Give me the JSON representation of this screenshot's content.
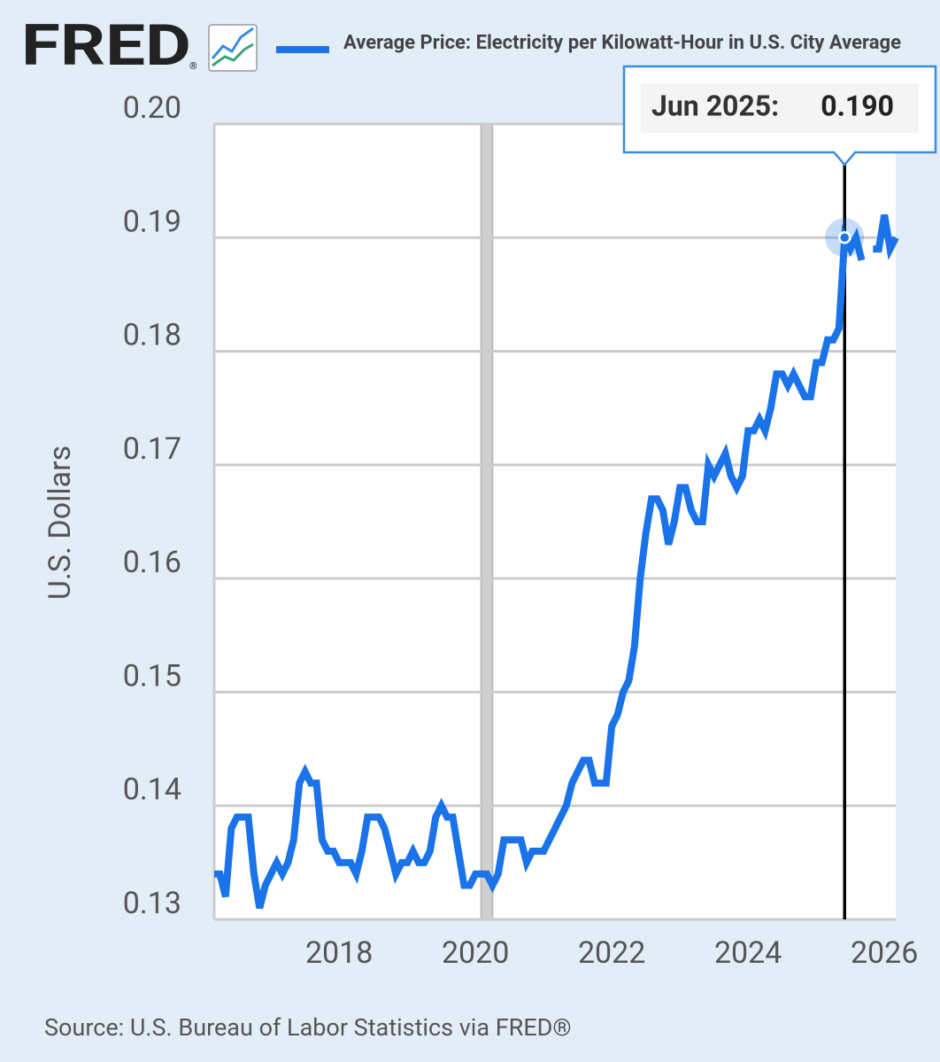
{
  "logo": "FRED",
  "logo_mark": "®",
  "source": "Source: U.S. Bureau of Labor Statistics via FRED®",
  "chart_data": {
    "type": "line",
    "ylabel": "U.S. Dollars",
    "xlim": [
      "2016-03",
      "2026-03"
    ],
    "ylim": [
      0.13,
      0.2
    ],
    "xticks": [
      {
        "value": "2018-01",
        "label": "2018"
      },
      {
        "value": "2020-01",
        "label": "2020"
      },
      {
        "value": "2022-01",
        "label": "2022"
      },
      {
        "value": "2024-01",
        "label": "2024"
      },
      {
        "value": "2026-01",
        "label": "2026"
      }
    ],
    "yticks": [
      0.13,
      0.14,
      0.15,
      0.16,
      0.17,
      0.18,
      0.19,
      {
        "value": 0.2,
        "label": "0.20"
      }
    ],
    "grid": true,
    "recessions": [
      [
        "2020-02",
        "2020-04"
      ]
    ],
    "tooltip": {
      "x": "2025-06",
      "label": "Jun 2025:",
      "value_label": "0.190"
    },
    "x": [
      "2016-03",
      "2016-04",
      "2016-05",
      "2016-06",
      "2016-07",
      "2016-08",
      "2016-09",
      "2016-10",
      "2016-11",
      "2016-12",
      "2017-01",
      "2017-02",
      "2017-03",
      "2017-04",
      "2017-05",
      "2017-06",
      "2017-07",
      "2017-08",
      "2017-09",
      "2017-10",
      "2017-11",
      "2017-12",
      "2018-01",
      "2018-02",
      "2018-03",
      "2018-04",
      "2018-05",
      "2018-06",
      "2018-07",
      "2018-08",
      "2018-09",
      "2018-10",
      "2018-11",
      "2018-12",
      "2019-01",
      "2019-02",
      "2019-03",
      "2019-04",
      "2019-05",
      "2019-06",
      "2019-07",
      "2019-08",
      "2019-09",
      "2019-10",
      "2019-11",
      "2019-12",
      "2020-01",
      "2020-02",
      "2020-03",
      "2020-04",
      "2020-05",
      "2020-06",
      "2020-07",
      "2020-08",
      "2020-09",
      "2020-10",
      "2020-11",
      "2020-12",
      "2021-01",
      "2021-02",
      "2021-03",
      "2021-04",
      "2021-05",
      "2021-06",
      "2021-07",
      "2021-08",
      "2021-09",
      "2021-10",
      "2021-11",
      "2021-12",
      "2022-01",
      "2022-02",
      "2022-03",
      "2022-04",
      "2022-05",
      "2022-06",
      "2022-07",
      "2022-08",
      "2022-09",
      "2022-10",
      "2022-11",
      "2022-12",
      "2023-01",
      "2023-02",
      "2023-03",
      "2023-04",
      "2023-05",
      "2023-06",
      "2023-07",
      "2023-08",
      "2023-09",
      "2023-10",
      "2023-11",
      "2023-12",
      "2024-01",
      "2024-02",
      "2024-03",
      "2024-04",
      "2024-05",
      "2024-06",
      "2024-07",
      "2024-08",
      "2024-09",
      "2024-10",
      "2024-11",
      "2024-12",
      "2025-01",
      "2025-02",
      "2025-03",
      "2025-04",
      "2025-05",
      "2025-06",
      "2025-07",
      "2025-08",
      "2025-09",
      "2025-10",
      "2025-11",
      "2025-12",
      "2026-01",
      "2026-02",
      "2026-03"
    ],
    "series": [
      {
        "name": "Average Price: Electricity per Kilowatt-Hour in U.S. City Average",
        "color": "#1a73e8",
        "values": [
          0.134,
          0.134,
          0.132,
          0.138,
          0.139,
          0.139,
          0.139,
          0.134,
          0.131,
          0.133,
          0.134,
          0.135,
          0.134,
          0.135,
          0.137,
          0.142,
          0.143,
          0.142,
          0.142,
          0.137,
          0.136,
          0.136,
          0.135,
          0.135,
          0.135,
          0.134,
          0.136,
          0.139,
          0.139,
          0.139,
          0.138,
          0.136,
          0.134,
          0.135,
          0.135,
          0.136,
          0.135,
          0.135,
          0.136,
          0.139,
          0.14,
          0.139,
          0.139,
          0.136,
          0.133,
          0.133,
          0.134,
          0.134,
          0.134,
          0.133,
          0.134,
          0.137,
          0.137,
          0.137,
          0.137,
          0.135,
          0.136,
          0.136,
          0.136,
          0.137,
          0.138,
          0.139,
          0.14,
          0.142,
          0.143,
          0.144,
          0.144,
          0.142,
          0.142,
          0.142,
          0.147,
          0.148,
          0.15,
          0.151,
          0.154,
          0.16,
          0.164,
          0.167,
          0.167,
          0.166,
          0.163,
          0.165,
          0.168,
          0.168,
          0.166,
          0.165,
          0.165,
          0.17,
          0.169,
          0.17,
          0.171,
          0.169,
          0.168,
          0.169,
          0.173,
          0.173,
          0.174,
          0.173,
          0.175,
          0.178,
          0.178,
          0.177,
          0.178,
          0.177,
          0.176,
          0.176,
          0.179,
          0.179,
          0.181,
          0.181,
          0.182,
          0.19,
          0.189,
          0.19,
          0.188,
          null,
          0.189,
          0.189,
          0.192,
          0.189,
          0.19
        ]
      }
    ]
  }
}
